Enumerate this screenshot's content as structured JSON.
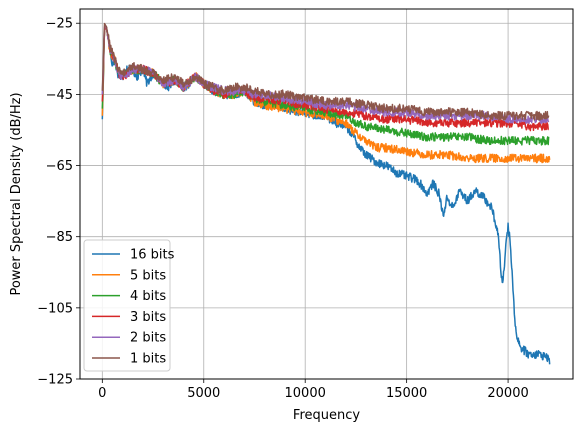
{
  "chart_data": {
    "type": "line",
    "xlabel": "Frequency",
    "ylabel": "Power Spectral Density (dB/Hz)",
    "xlim": [
      -1100,
      23200
    ],
    "ylim": [
      -125,
      -21
    ],
    "x_ticks": [
      0,
      5000,
      10000,
      15000,
      20000
    ],
    "x_tick_labels": [
      "0",
      "5000",
      "10000",
      "15000",
      "20000"
    ],
    "y_ticks": [
      -25,
      -45,
      -65,
      -85,
      -105,
      -125
    ],
    "y_tick_labels": [
      "−25",
      "−45",
      "−65",
      "−85",
      "−105",
      "−125"
    ],
    "grid": true,
    "legend_position": "lower-left",
    "series": [
      {
        "name": "16 bits",
        "color": "#1f77b4",
        "points": [
          [
            0,
            -52
          ],
          [
            40,
            -44
          ],
          [
            100,
            -27
          ],
          [
            200,
            -26
          ],
          [
            300,
            -30
          ],
          [
            400,
            -33
          ],
          [
            500,
            -37
          ],
          [
            600,
            -35
          ],
          [
            800,
            -40
          ],
          [
            1000,
            -40
          ],
          [
            1200,
            -38
          ],
          [
            1500,
            -38
          ],
          [
            1700,
            -40
          ],
          [
            2000,
            -38
          ],
          [
            2200,
            -42
          ],
          [
            2500,
            -39
          ],
          [
            2800,
            -41
          ],
          [
            3000,
            -42
          ],
          [
            3300,
            -43
          ],
          [
            3600,
            -41
          ],
          [
            4000,
            -43
          ],
          [
            4300,
            -42
          ],
          [
            4600,
            -40
          ],
          [
            5000,
            -42
          ],
          [
            5500,
            -44
          ],
          [
            6000,
            -45
          ],
          [
            6500,
            -45
          ],
          [
            7000,
            -44
          ],
          [
            7500,
            -47
          ],
          [
            8000,
            -48
          ],
          [
            8500,
            -48
          ],
          [
            9000,
            -49
          ],
          [
            9500,
            -50
          ],
          [
            10000,
            -50
          ],
          [
            10500,
            -51
          ],
          [
            11000,
            -51
          ],
          [
            11500,
            -53
          ],
          [
            12000,
            -54
          ],
          [
            12300,
            -56
          ],
          [
            12700,
            -60
          ],
          [
            13000,
            -62
          ],
          [
            13500,
            -64
          ],
          [
            14000,
            -65
          ],
          [
            14500,
            -67
          ],
          [
            15000,
            -68
          ],
          [
            15500,
            -69
          ],
          [
            15800,
            -71
          ],
          [
            16000,
            -73
          ],
          [
            16300,
            -70
          ],
          [
            16600,
            -73
          ],
          [
            16800,
            -79
          ],
          [
            17000,
            -74
          ],
          [
            17300,
            -77
          ],
          [
            17600,
            -72
          ],
          [
            18000,
            -75
          ],
          [
            18400,
            -72
          ],
          [
            18800,
            -74
          ],
          [
            19200,
            -77
          ],
          [
            19500,
            -84
          ],
          [
            19700,
            -98
          ],
          [
            19800,
            -95
          ],
          [
            19900,
            -86
          ],
          [
            20000,
            -82
          ],
          [
            20100,
            -86
          ],
          [
            20200,
            -95
          ],
          [
            20300,
            -106
          ],
          [
            20400,
            -112
          ],
          [
            20600,
            -116
          ],
          [
            21000,
            -118
          ],
          [
            21500,
            -118
          ],
          [
            22000,
            -119
          ],
          [
            22050,
            -121
          ]
        ]
      },
      {
        "name": "5 bits",
        "color": "#ff7f0e",
        "points": [
          [
            0,
            -51
          ],
          [
            40,
            -43
          ],
          [
            100,
            -27
          ],
          [
            200,
            -26
          ],
          [
            300,
            -30
          ],
          [
            400,
            -33
          ],
          [
            600,
            -35
          ],
          [
            800,
            -39
          ],
          [
            1000,
            -40
          ],
          [
            1500,
            -38
          ],
          [
            2000,
            -38
          ],
          [
            2500,
            -39
          ],
          [
            3000,
            -42
          ],
          [
            3600,
            -41
          ],
          [
            4000,
            -43
          ],
          [
            4600,
            -40
          ],
          [
            5000,
            -42
          ],
          [
            5500,
            -44
          ],
          [
            6000,
            -45
          ],
          [
            6500,
            -45
          ],
          [
            7000,
            -44
          ],
          [
            7500,
            -47
          ],
          [
            8000,
            -48
          ],
          [
            9000,
            -49
          ],
          [
            10000,
            -50
          ],
          [
            11000,
            -51
          ],
          [
            12000,
            -53
          ],
          [
            12500,
            -56
          ],
          [
            13000,
            -58
          ],
          [
            13500,
            -60
          ],
          [
            14000,
            -60
          ],
          [
            15000,
            -61
          ],
          [
            16000,
            -62
          ],
          [
            17000,
            -62
          ],
          [
            18000,
            -63
          ],
          [
            19000,
            -63
          ],
          [
            20000,
            -63
          ],
          [
            21000,
            -63
          ],
          [
            22000,
            -63
          ],
          [
            22050,
            -64
          ]
        ]
      },
      {
        "name": "4 bits",
        "color": "#2ca02c",
        "points": [
          [
            0,
            -49
          ],
          [
            40,
            -42
          ],
          [
            100,
            -27
          ],
          [
            200,
            -26
          ],
          [
            300,
            -30
          ],
          [
            400,
            -33
          ],
          [
            600,
            -35
          ],
          [
            800,
            -39
          ],
          [
            1000,
            -40
          ],
          [
            1500,
            -38
          ],
          [
            2000,
            -38
          ],
          [
            2500,
            -39
          ],
          [
            3000,
            -42
          ],
          [
            3600,
            -41
          ],
          [
            4000,
            -43
          ],
          [
            4600,
            -40
          ],
          [
            5000,
            -42
          ],
          [
            5500,
            -44
          ],
          [
            6000,
            -45
          ],
          [
            6500,
            -45
          ],
          [
            7000,
            -44
          ],
          [
            7500,
            -46
          ],
          [
            8000,
            -47
          ],
          [
            9000,
            -48
          ],
          [
            10000,
            -49
          ],
          [
            11000,
            -50
          ],
          [
            12000,
            -51
          ],
          [
            12500,
            -53
          ],
          [
            13000,
            -54
          ],
          [
            14000,
            -55
          ],
          [
            15000,
            -56
          ],
          [
            16000,
            -57
          ],
          [
            17000,
            -57
          ],
          [
            18000,
            -57
          ],
          [
            19000,
            -58
          ],
          [
            20000,
            -58
          ],
          [
            21000,
            -58
          ],
          [
            22000,
            -58
          ]
        ]
      },
      {
        "name": "3 bits",
        "color": "#d62728",
        "points": [
          [
            0,
            -47
          ],
          [
            40,
            -41
          ],
          [
            100,
            -27
          ],
          [
            200,
            -26
          ],
          [
            300,
            -30
          ],
          [
            400,
            -33
          ],
          [
            600,
            -35
          ],
          [
            800,
            -39
          ],
          [
            1000,
            -40
          ],
          [
            1500,
            -38
          ],
          [
            2000,
            -38
          ],
          [
            2500,
            -39
          ],
          [
            3000,
            -42
          ],
          [
            3600,
            -41
          ],
          [
            4000,
            -43
          ],
          [
            4600,
            -40
          ],
          [
            5000,
            -42
          ],
          [
            5500,
            -44
          ],
          [
            6000,
            -45
          ],
          [
            6500,
            -44
          ],
          [
            7000,
            -44
          ],
          [
            7500,
            -46
          ],
          [
            8000,
            -46
          ],
          [
            9000,
            -47
          ],
          [
            10000,
            -48
          ],
          [
            11000,
            -49
          ],
          [
            12000,
            -50
          ],
          [
            13000,
            -51
          ],
          [
            14000,
            -52
          ],
          [
            15000,
            -52
          ],
          [
            16000,
            -53
          ],
          [
            17000,
            -53
          ],
          [
            18000,
            -53
          ],
          [
            19000,
            -53
          ],
          [
            20000,
            -53
          ],
          [
            21000,
            -54
          ],
          [
            22000,
            -54
          ]
        ]
      },
      {
        "name": "2 bits",
        "color": "#9467bd",
        "points": [
          [
            0,
            -45
          ],
          [
            40,
            -39
          ],
          [
            100,
            -26
          ],
          [
            200,
            -26
          ],
          [
            300,
            -30
          ],
          [
            400,
            -33
          ],
          [
            600,
            -35
          ],
          [
            800,
            -39
          ],
          [
            1000,
            -40
          ],
          [
            1500,
            -38
          ],
          [
            2000,
            -38
          ],
          [
            2500,
            -39
          ],
          [
            3000,
            -42
          ],
          [
            3600,
            -41
          ],
          [
            4000,
            -43
          ],
          [
            4600,
            -40
          ],
          [
            5000,
            -42
          ],
          [
            5500,
            -43
          ],
          [
            6000,
            -44
          ],
          [
            6500,
            -44
          ],
          [
            7000,
            -44
          ],
          [
            7500,
            -45
          ],
          [
            8000,
            -45
          ],
          [
            9000,
            -46
          ],
          [
            10000,
            -47
          ],
          [
            11000,
            -48
          ],
          [
            12000,
            -48
          ],
          [
            13000,
            -49
          ],
          [
            14000,
            -50
          ],
          [
            15000,
            -50
          ],
          [
            16000,
            -51
          ],
          [
            17000,
            -51
          ],
          [
            18000,
            -51
          ],
          [
            19000,
            -51
          ],
          [
            20000,
            -52
          ],
          [
            21000,
            -52
          ],
          [
            22000,
            -52
          ]
        ]
      },
      {
        "name": "1 bits",
        "color": "#8c564b",
        "points": [
          [
            0,
            -44
          ],
          [
            40,
            -38
          ],
          [
            100,
            -25
          ],
          [
            200,
            -26
          ],
          [
            300,
            -29
          ],
          [
            400,
            -32
          ],
          [
            600,
            -35
          ],
          [
            800,
            -38
          ],
          [
            1000,
            -39
          ],
          [
            1500,
            -37
          ],
          [
            2000,
            -38
          ],
          [
            2500,
            -39
          ],
          [
            3000,
            -41
          ],
          [
            3600,
            -40
          ],
          [
            4000,
            -42
          ],
          [
            4600,
            -40
          ],
          [
            5000,
            -42
          ],
          [
            5500,
            -43
          ],
          [
            6000,
            -44
          ],
          [
            6500,
            -43
          ],
          [
            7000,
            -43
          ],
          [
            7500,
            -44
          ],
          [
            8000,
            -45
          ],
          [
            9000,
            -45
          ],
          [
            10000,
            -46
          ],
          [
            11000,
            -47
          ],
          [
            12000,
            -47
          ],
          [
            13000,
            -48
          ],
          [
            14000,
            -49
          ],
          [
            15000,
            -49
          ],
          [
            16000,
            -50
          ],
          [
            17000,
            -50
          ],
          [
            18000,
            -50
          ],
          [
            19000,
            -51
          ],
          [
            20000,
            -51
          ],
          [
            21000,
            -51
          ],
          [
            22000,
            -51
          ]
        ]
      }
    ]
  }
}
